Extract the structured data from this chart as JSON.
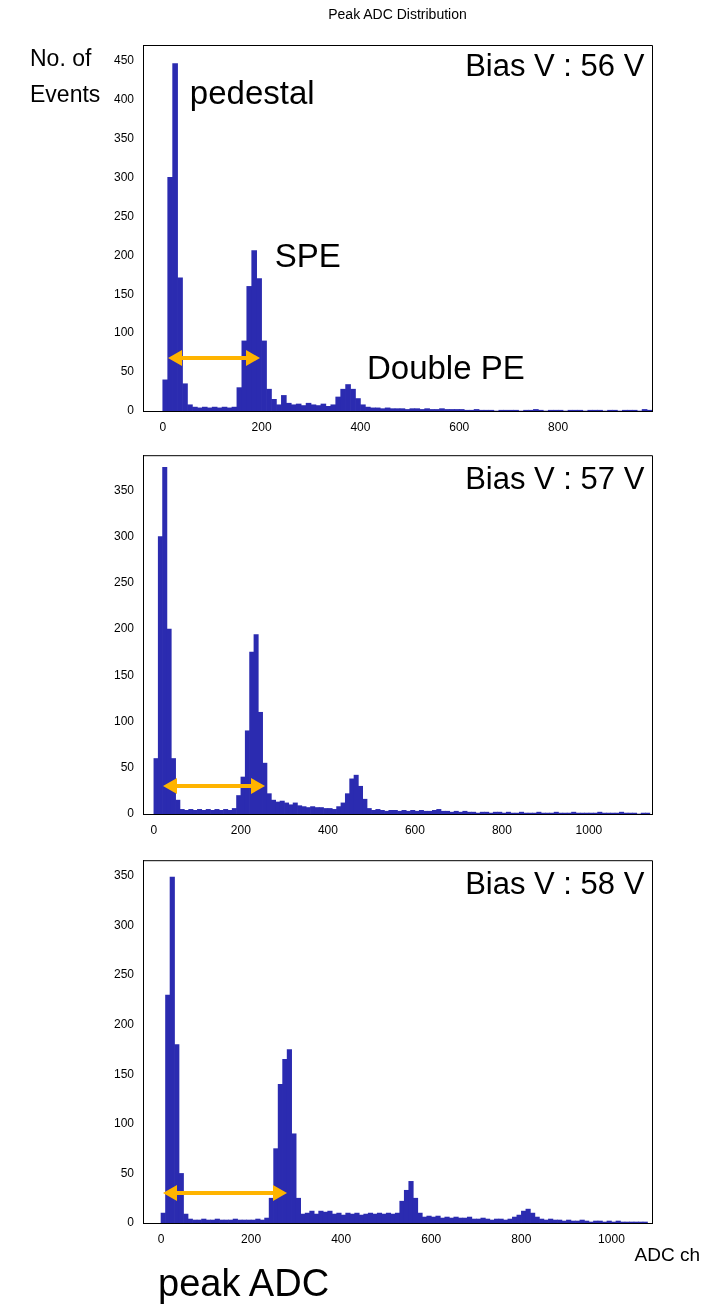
{
  "chart_data": [
    {
      "type": "histogram",
      "title": "Peak ADC Distribution",
      "ylabel": "No. of Events",
      "color": "#2b2bb0",
      "bins": [
        0,
        10,
        20,
        30,
        40,
        50,
        60,
        70,
        80,
        90,
        100,
        110,
        120,
        130,
        140,
        150,
        160,
        170,
        180,
        190,
        200,
        210,
        220,
        230,
        240,
        250,
        260,
        270,
        280,
        290,
        300,
        310,
        320,
        330,
        340,
        350,
        360,
        370,
        380,
        390,
        400,
        410,
        420,
        430,
        440,
        450,
        460,
        470,
        480,
        490,
        500,
        510,
        520,
        530,
        540,
        550,
        560,
        570,
        580,
        590,
        600,
        610,
        620,
        630,
        640,
        650,
        660,
        670,
        680,
        690,
        700,
        710,
        720,
        730,
        740,
        750,
        760,
        770,
        780,
        790,
        800,
        810,
        820,
        830,
        840,
        850,
        860,
        870,
        880,
        890,
        900,
        910,
        920,
        930,
        940,
        950,
        960,
        970,
        980,
        990
      ],
      "values": [
        40,
        300,
        446,
        171,
        35,
        8,
        5,
        4,
        5,
        4,
        5,
        4,
        5,
        4,
        5,
        30,
        90,
        160,
        206,
        170,
        90,
        28,
        15,
        8,
        20,
        10,
        8,
        9,
        7,
        10,
        8,
        7,
        9,
        6,
        8,
        18,
        28,
        34,
        28,
        16,
        8,
        5,
        4,
        4,
        3,
        4,
        3,
        3,
        3,
        2,
        3,
        3,
        2,
        3,
        2,
        2,
        3,
        2,
        2,
        2,
        2,
        1,
        1,
        2,
        1,
        1,
        1,
        0,
        1,
        1,
        1,
        1,
        0,
        1,
        1,
        2,
        1,
        0,
        1,
        1,
        1,
        0,
        1,
        1,
        1,
        0,
        1,
        1,
        1,
        0,
        1,
        1,
        0,
        1,
        1,
        1,
        0,
        2,
        1
      ],
      "xlim": [
        -40,
        990
      ],
      "xticks": [
        0,
        200,
        400,
        600,
        800
      ],
      "ylim": [
        0,
        470
      ],
      "yticks": [
        0,
        50,
        100,
        150,
        200,
        250,
        300,
        350,
        400,
        450
      ],
      "annotations": [
        "Bias V : 56 V",
        "pedestal",
        "SPE",
        "Double PE"
      ]
    },
    {
      "type": "histogram",
      "color": "#2b2bb0",
      "bins": [
        0,
        10,
        20,
        30,
        40,
        50,
        60,
        70,
        80,
        90,
        100,
        110,
        120,
        130,
        140,
        150,
        160,
        170,
        180,
        190,
        200,
        210,
        220,
        230,
        240,
        250,
        260,
        270,
        280,
        290,
        300,
        310,
        320,
        330,
        340,
        350,
        360,
        370,
        380,
        390,
        400,
        410,
        420,
        430,
        440,
        450,
        460,
        470,
        480,
        490,
        500,
        510,
        520,
        530,
        540,
        550,
        560,
        570,
        580,
        590,
        600,
        610,
        620,
        630,
        640,
        650,
        660,
        670,
        680,
        690,
        700,
        710,
        720,
        730,
        740,
        750,
        760,
        770,
        780,
        790,
        800,
        810,
        820,
        830,
        840,
        850,
        860,
        870,
        880,
        890,
        900,
        910,
        920,
        930,
        940,
        950,
        960,
        970,
        980,
        990,
        1000,
        1010,
        1020,
        1030,
        1040,
        1050,
        1060,
        1070,
        1080,
        1090,
        1100,
        1110,
        1120,
        1130,
        1140
      ],
      "values": [
        60,
        300,
        375,
        200,
        60,
        15,
        5,
        4,
        5,
        4,
        5,
        4,
        5,
        4,
        5,
        4,
        5,
        4,
        6,
        20,
        40,
        90,
        175,
        194,
        110,
        55,
        22,
        15,
        13,
        14,
        12,
        10,
        12,
        9,
        8,
        7,
        8,
        7,
        7,
        6,
        6,
        5,
        8,
        12,
        22,
        38,
        42,
        30,
        16,
        6,
        4,
        5,
        4,
        3,
        4,
        4,
        3,
        4,
        3,
        4,
        3,
        4,
        3,
        3,
        4,
        5,
        3,
        3,
        2,
        3,
        2,
        3,
        2,
        2,
        1,
        2,
        2,
        1,
        2,
        2,
        1,
        2,
        1,
        1,
        2,
        1,
        1,
        1,
        2,
        1,
        1,
        1,
        2,
        1,
        1,
        1,
        2,
        1,
        1,
        1,
        1,
        1,
        2,
        1,
        1,
        1,
        1,
        2,
        1,
        1,
        1,
        0,
        1,
        1
      ],
      "xlim": [
        -25,
        1145
      ],
      "xticks": [
        0,
        200,
        400,
        600,
        800,
        1000
      ],
      "ylim": [
        0,
        388
      ],
      "yticks": [
        0,
        50,
        100,
        150,
        200,
        250,
        300,
        350
      ],
      "annotations": [
        "Bias V : 57 V"
      ]
    },
    {
      "type": "histogram",
      "xlabel": "ADC ch",
      "color": "#2b2bb0",
      "bins": [
        0,
        10,
        20,
        30,
        40,
        50,
        60,
        70,
        80,
        90,
        100,
        110,
        120,
        130,
        140,
        150,
        160,
        170,
        180,
        190,
        200,
        210,
        220,
        230,
        240,
        250,
        260,
        270,
        280,
        290,
        300,
        310,
        320,
        330,
        340,
        350,
        360,
        370,
        380,
        390,
        400,
        410,
        420,
        430,
        440,
        450,
        460,
        470,
        480,
        490,
        500,
        510,
        520,
        530,
        540,
        550,
        560,
        570,
        580,
        590,
        600,
        610,
        620,
        630,
        640,
        650,
        660,
        670,
        680,
        690,
        700,
        710,
        720,
        730,
        740,
        750,
        760,
        770,
        780,
        790,
        800,
        810,
        820,
        830,
        840,
        850,
        860,
        870,
        880,
        890,
        900,
        910,
        920,
        930,
        940,
        950,
        960,
        970,
        980,
        990,
        1000,
        1010,
        1020,
        1030,
        1040,
        1050,
        1060,
        1070,
        1080
      ],
      "values": [
        10,
        230,
        349,
        180,
        50,
        9,
        4,
        3,
        3,
        4,
        3,
        3,
        4,
        3,
        3,
        3,
        4,
        3,
        3,
        3,
        3,
        4,
        3,
        5,
        25,
        75,
        140,
        165,
        175,
        90,
        25,
        9,
        10,
        12,
        9,
        12,
        11,
        12,
        9,
        10,
        8,
        10,
        9,
        10,
        8,
        9,
        10,
        9,
        10,
        9,
        10,
        9,
        10,
        22,
        33,
        42,
        25,
        10,
        6,
        7,
        6,
        7,
        5,
        6,
        5,
        6,
        5,
        5,
        6,
        4,
        4,
        5,
        4,
        3,
        4,
        4,
        3,
        4,
        6,
        8,
        12,
        14,
        10,
        6,
        4,
        3,
        4,
        3,
        3,
        2,
        3,
        2,
        2,
        3,
        2,
        1,
        2,
        2,
        1,
        2,
        1,
        2,
        1,
        1,
        1,
        1,
        1,
        1
      ],
      "xlim": [
        -40,
        1090
      ],
      "xticks": [
        0,
        200,
        400,
        600,
        800,
        1000
      ],
      "ylim": [
        0,
        366
      ],
      "yticks": [
        0,
        50,
        100,
        150,
        200,
        250,
        300,
        350
      ],
      "annotations": [
        "Bias V : 58 V",
        "peak ADC"
      ]
    }
  ]
}
